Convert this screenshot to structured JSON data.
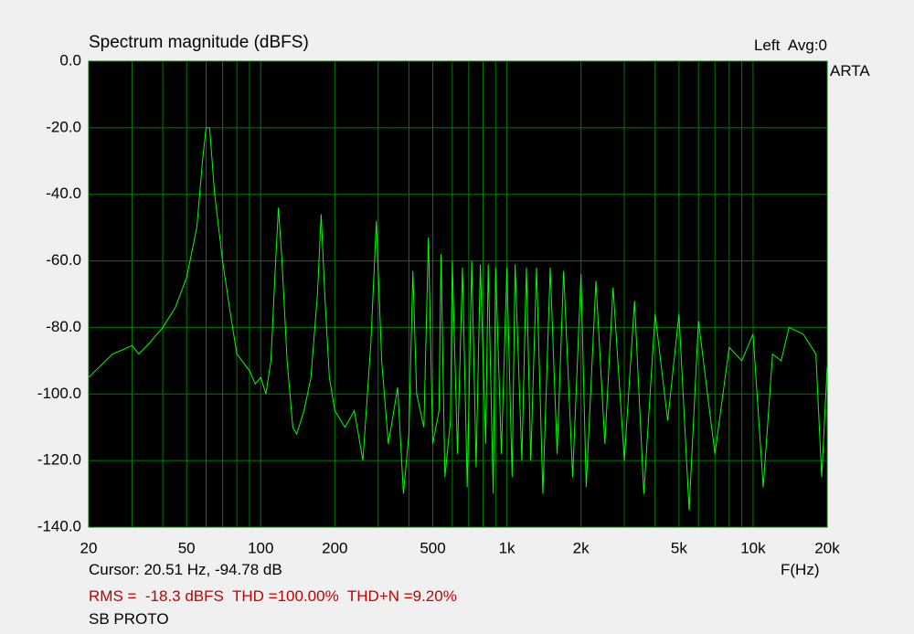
{
  "chart_data": {
    "type": "line",
    "title": "Spectrum magnitude (dBFS)",
    "channel_label": "Left  Avg:0",
    "watermark": "ARTA",
    "x_label": "F(Hz)",
    "cursor": "Cursor: 20.51 Hz, -94.78 dB",
    "stats": "RMS =  -18.3 dBFS  THD =100.00%  THD+N =9.20%",
    "footer": "SB PROTO",
    "xscale": "log",
    "xlim": [
      20,
      20000
    ],
    "ylim": [
      -140,
      0
    ],
    "yticks": [
      {
        "value": 0,
        "label": "0.0"
      },
      {
        "value": -20,
        "label": "-20.0"
      },
      {
        "value": -40,
        "label": "-40.0"
      },
      {
        "value": -60,
        "label": "-60.0"
      },
      {
        "value": -80,
        "label": "-80.0"
      },
      {
        "value": -100,
        "label": "-100.0"
      },
      {
        "value": -120,
        "label": "-120.0"
      },
      {
        "value": -140,
        "label": "-140.0"
      }
    ],
    "xticks": [
      20,
      50,
      100,
      200,
      500,
      {
        "value": 1000,
        "label": "1k"
      },
      {
        "value": 2000,
        "label": "2k"
      },
      {
        "value": 5000,
        "label": "5k"
      },
      {
        "value": 10000,
        "label": "10k"
      },
      {
        "value": 20000,
        "label": "20k"
      }
    ],
    "xminor": [
      30,
      40,
      60,
      70,
      80,
      90,
      300,
      400,
      600,
      700,
      800,
      900,
      3000,
      4000,
      6000,
      7000,
      8000,
      9000
    ],
    "grid": true,
    "background": "#000000",
    "grid_color": "#007a00",
    "series": [
      {
        "color": "#00ff00",
        "x": [
          20,
          25,
          30,
          32,
          35,
          40,
          45,
          50,
          55,
          58,
          60,
          62,
          65,
          70,
          75,
          80,
          90,
          95,
          100,
          105,
          110,
          115,
          118,
          122,
          128,
          135,
          140,
          150,
          160,
          170,
          176,
          182,
          190,
          200,
          220,
          240,
          260,
          280,
          295,
          310,
          330,
          360,
          380,
          400,
          415,
          430,
          460,
          480,
          500,
          530,
          540,
          560,
          590,
          600,
          630,
          660,
          690,
          720,
          750,
          780,
          820,
          840,
          880,
          900,
          950,
          1000,
          1050,
          1080,
          1150,
          1200,
          1250,
          1320,
          1400,
          1500,
          1600,
          1700,
          1850,
          2000,
          2100,
          2300,
          2500,
          2700,
          3000,
          3300,
          3600,
          4000,
          4500,
          5000,
          5500,
          6000,
          7000,
          8000,
          9000,
          10000,
          11000,
          12000,
          13000,
          14000,
          16000,
          18000,
          19000,
          20000
        ],
        "values": [
          -95,
          -88,
          -85.5,
          -88,
          -85,
          -80,
          -74,
          -65,
          -50,
          -30,
          -20,
          -20,
          -40,
          -60,
          -75,
          -88,
          -93,
          -97,
          -95,
          -100,
          -90,
          -60,
          -44,
          -60,
          -90,
          -110,
          -112,
          -105,
          -95,
          -70,
          -46,
          -70,
          -95,
          -105,
          -110,
          -105,
          -120,
          -85,
          -48,
          -90,
          -115,
          -98,
          -130,
          -112,
          -63,
          -100,
          -110,
          -53,
          -115,
          -105,
          -58,
          -125,
          -108,
          -60,
          -118,
          -62,
          -128,
          -60,
          -122,
          -61,
          -115,
          -61,
          -130,
          -62,
          -118,
          -62,
          -125,
          -61,
          -120,
          -62,
          -120,
          -62,
          -130,
          -62,
          -118,
          -63,
          -125,
          -64,
          -128,
          -66,
          -115,
          -68,
          -120,
          -72,
          -130,
          -76,
          -108,
          -76,
          -135,
          -78,
          -118,
          -86,
          -90,
          -82,
          -128,
          -88,
          -90,
          -80,
          -82,
          -88,
          -125,
          -92
        ]
      }
    ]
  }
}
